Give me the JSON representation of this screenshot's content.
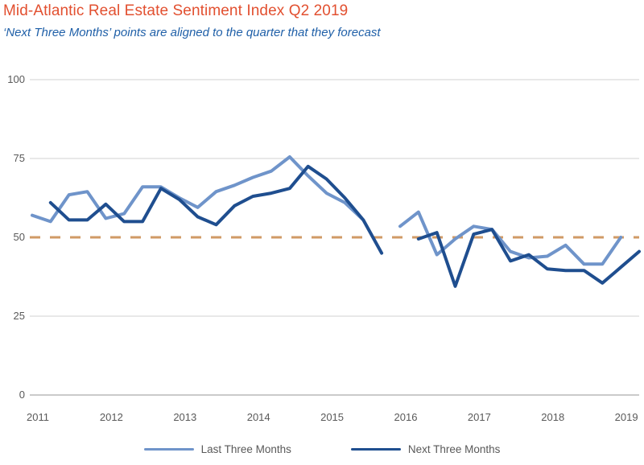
{
  "chart_data": {
    "type": "line",
    "title": "Mid-Atlantic Real Estate Sentiment Index Q2 2019",
    "subtitle": "‘Next Three Months’ points are aligned to the quarter that they forecast",
    "xlabel": "",
    "ylabel": "",
    "ylim": [
      0,
      100
    ],
    "yticks": [
      0,
      25,
      50,
      75,
      100
    ],
    "grid": "horizontal",
    "legend_position": "bottom",
    "year_labels": [
      "2011",
      "2012",
      "2013",
      "2014",
      "2015",
      "2016",
      "2017",
      "2018",
      "2019"
    ],
    "quarters": [
      "2011 Q1",
      "2011 Q2",
      "2011 Q3",
      "2011 Q4",
      "2012 Q1",
      "2012 Q2",
      "2012 Q3",
      "2012 Q4",
      "2013 Q1",
      "2013 Q2",
      "2013 Q3",
      "2013 Q4",
      "2014 Q1",
      "2014 Q2",
      "2014 Q3",
      "2014 Q4",
      "2015 Q1",
      "2015 Q2",
      "2015 Q3",
      "2015 Q4",
      "2016 Q1",
      "2016 Q2",
      "2016 Q3",
      "2016 Q4",
      "2017 Q1",
      "2017 Q2",
      "2017 Q3",
      "2017 Q4",
      "2018 Q1",
      "2018 Q2",
      "2018 Q3",
      "2018 Q4",
      "2019 Q1",
      "2019 Q2"
    ],
    "series": [
      {
        "name": "Last Three Months",
        "color": "#6f94ca",
        "values": [
          57,
          55,
          63.5,
          64.5,
          56,
          57.5,
          66,
          66,
          62.5,
          59.5,
          64.5,
          66.5,
          69,
          71,
          75.5,
          69.5,
          64,
          61,
          55.5,
          null,
          53.5,
          58,
          44.5,
          49.5,
          53.5,
          52.5,
          45.5,
          43.5,
          44,
          47.5,
          41.5,
          41.5,
          50,
          null
        ]
      },
      {
        "name": "Next Three Months",
        "color": "#1f4e8f",
        "values": [
          null,
          61,
          55.5,
          55.5,
          60.5,
          55,
          55,
          65.5,
          62,
          56.5,
          54,
          60,
          63,
          64,
          65.5,
          72.5,
          68.5,
          62.5,
          55.5,
          45,
          null,
          49.5,
          51.5,
          34.5,
          51,
          52.5,
          42.5,
          44.5,
          40,
          39.5,
          39.5,
          35.5,
          40.5,
          45.5
        ]
      }
    ],
    "reference_line": {
      "value": 50,
      "style": "dashed",
      "color": "#d09a66"
    }
  },
  "colors": {
    "title": "#e25030",
    "subtitle": "#2060a8",
    "axis_text": "#595959",
    "gridline": "#d9d9d9",
    "baseline": "#ababab",
    "last_series": "#6f94ca",
    "next_series": "#1f4e8f",
    "reference": "#d09a66"
  }
}
